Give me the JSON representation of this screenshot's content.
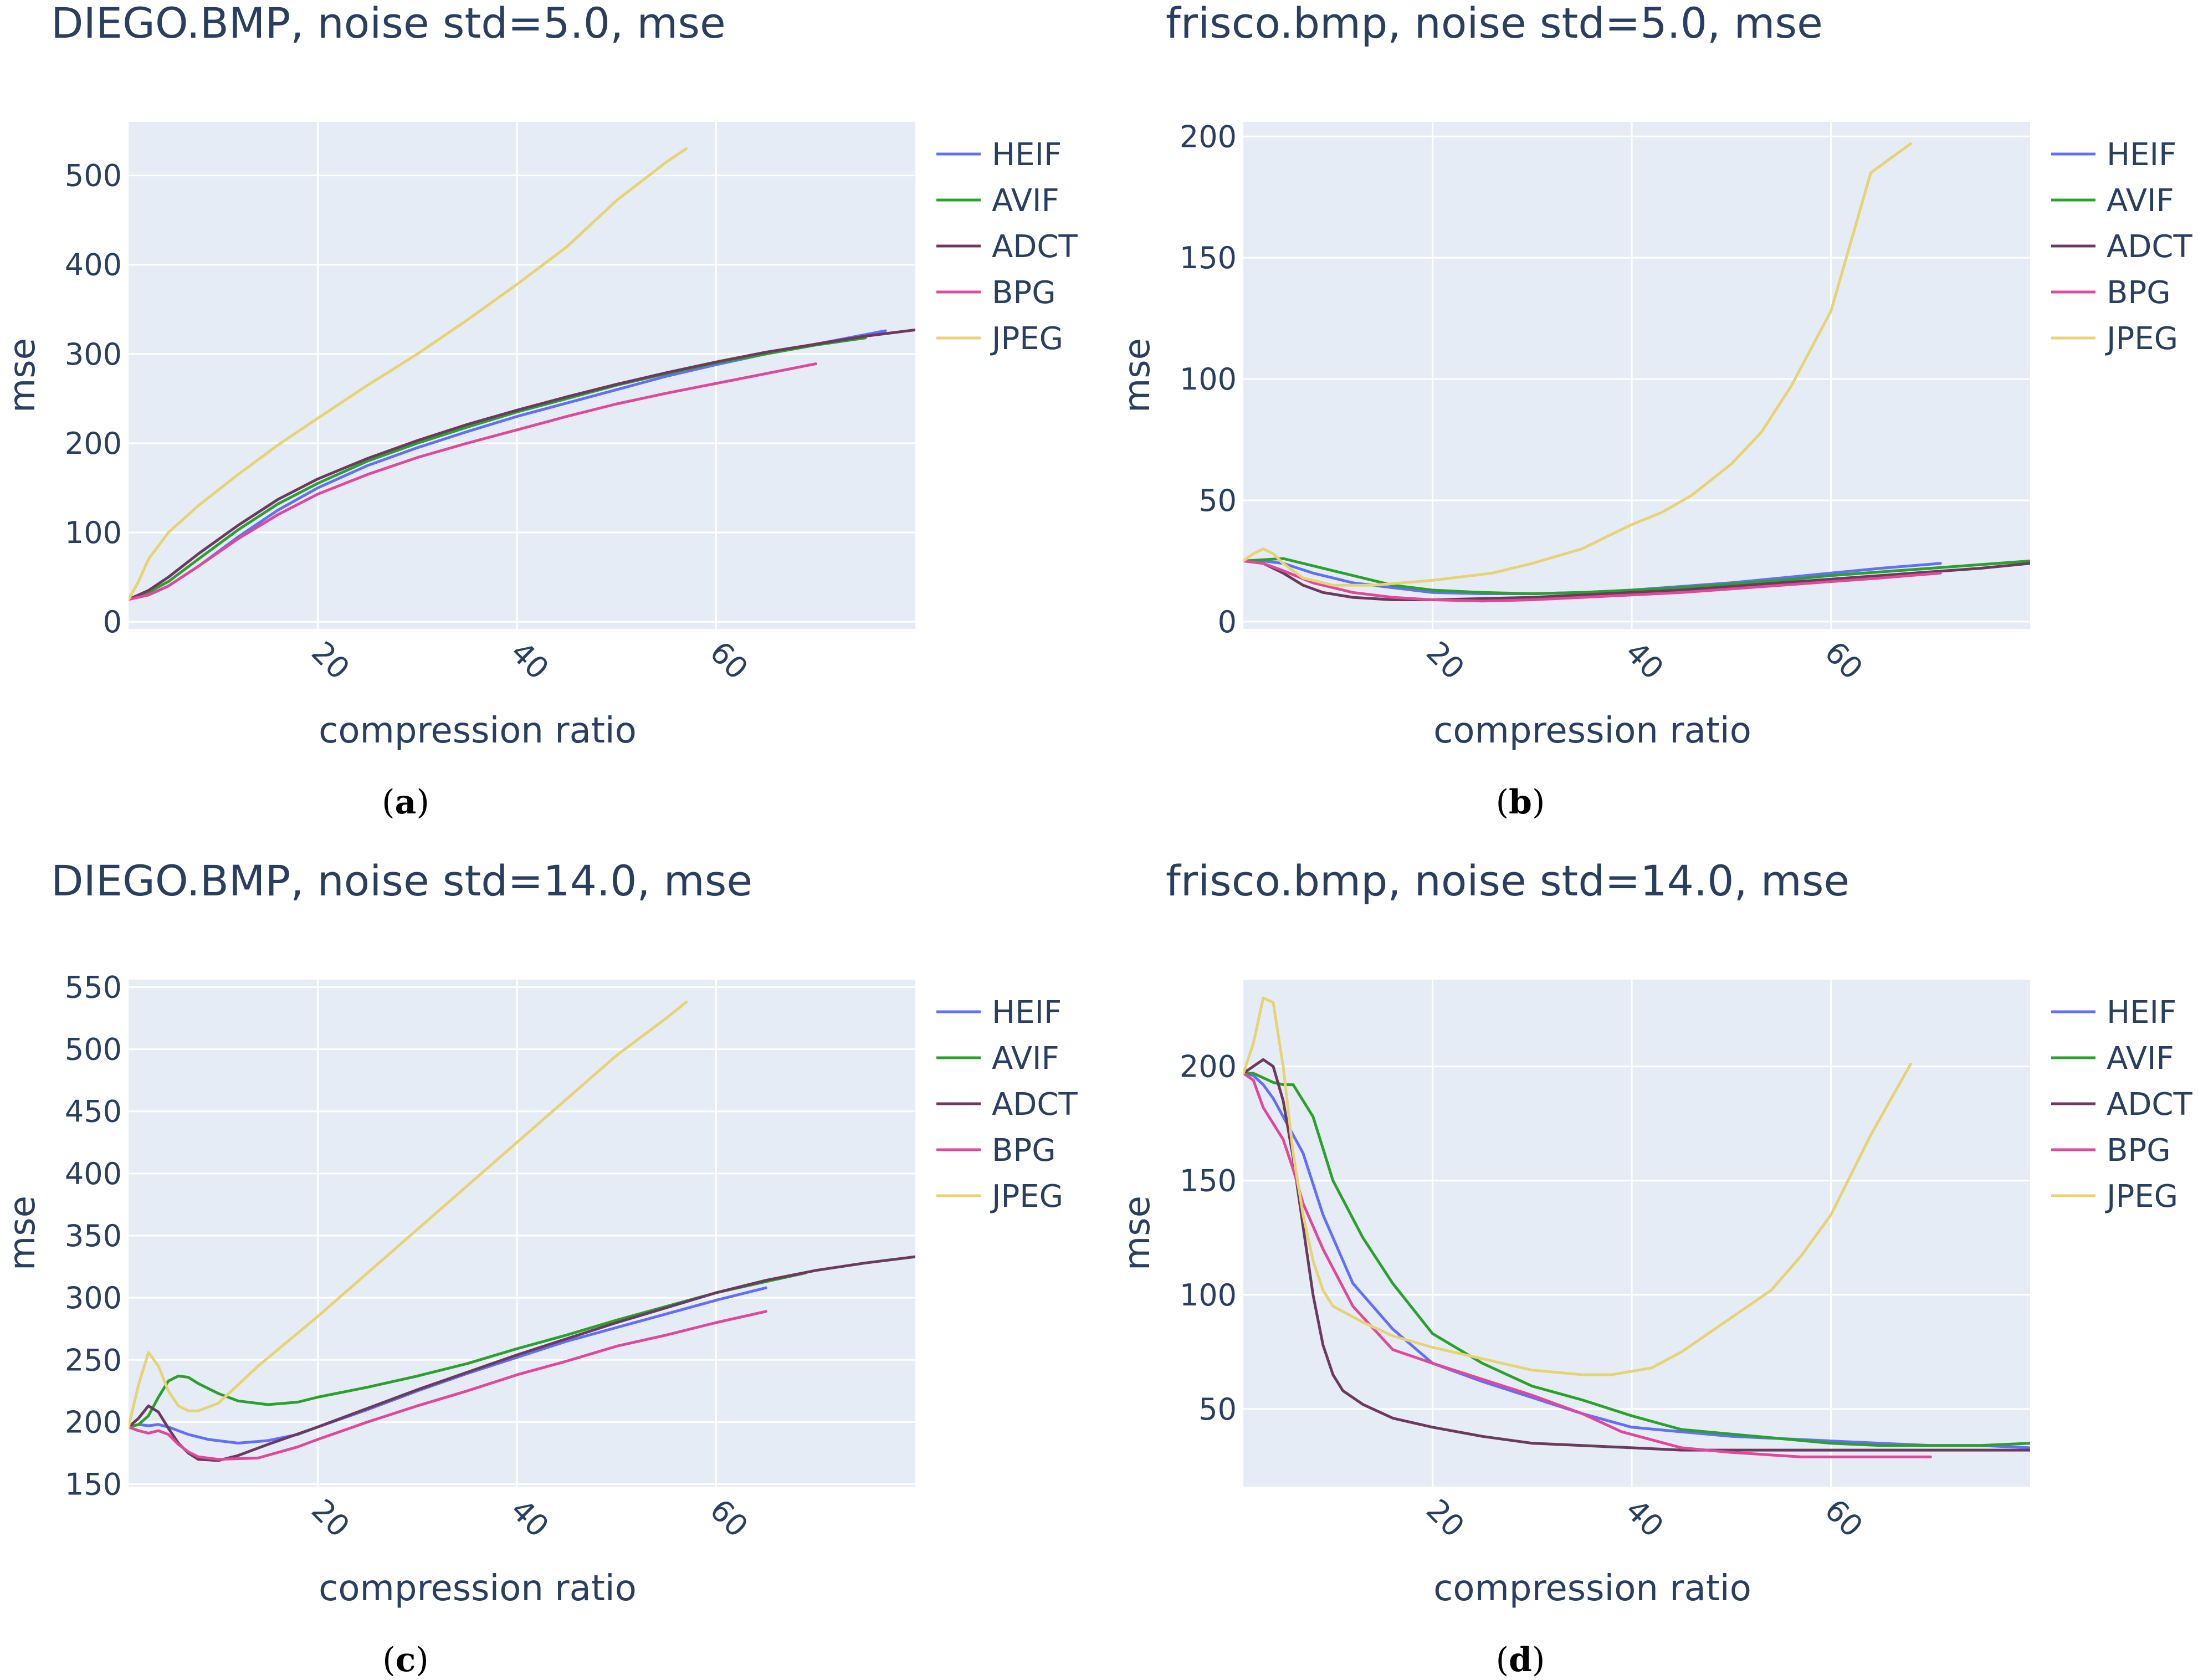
{
  "chart_data": [
    {
      "type": "line",
      "title": "DIEGO.BMP, noise std=5.0, mse",
      "xlabel": "compression ratio",
      "ylabel": "mse",
      "caption": "a",
      "xlim": [
        1,
        80
      ],
      "ylim": [
        -8,
        560
      ],
      "xticks": [
        20,
        40,
        60
      ],
      "yticks": [
        0,
        100,
        200,
        300,
        400,
        500
      ],
      "grid": true,
      "legend": "top-right outside",
      "series": [
        {
          "name": "HEIF",
          "color": "#636efa",
          "x": [
            1,
            3,
            5,
            8,
            12,
            16,
            20,
            25,
            30,
            35,
            40,
            45,
            50,
            55,
            60,
            65,
            70,
            77
          ],
          "y": [
            25,
            30,
            40,
            62,
            95,
            125,
            150,
            175,
            195,
            213,
            230,
            245,
            260,
            275,
            288,
            300,
            311,
            326
          ]
        },
        {
          "name": "AVIF",
          "color": "#2ca02c",
          "x": [
            1,
            3,
            5,
            8,
            12,
            16,
            20,
            25,
            30,
            35,
            40,
            45,
            50,
            55,
            60,
            65,
            70,
            75
          ],
          "y": [
            25,
            33,
            45,
            70,
            103,
            132,
            155,
            180,
            200,
            218,
            235,
            250,
            265,
            278,
            290,
            300,
            310,
            318
          ]
        },
        {
          "name": "ADCT",
          "color": "#6b3a5e",
          "x": [
            1,
            3,
            5,
            8,
            12,
            16,
            20,
            25,
            30,
            35,
            40,
            45,
            50,
            55,
            60,
            65,
            70,
            75,
            80
          ],
          "y": [
            25,
            35,
            50,
            76,
            108,
            137,
            160,
            183,
            203,
            221,
            237,
            252,
            266,
            279,
            291,
            302,
            311,
            320,
            327
          ]
        },
        {
          "name": "BPG",
          "color": "#e0489a",
          "x": [
            1,
            3,
            5,
            8,
            12,
            16,
            20,
            25,
            30,
            35,
            40,
            45,
            50,
            55,
            60,
            65,
            70
          ],
          "y": [
            25,
            30,
            40,
            62,
            93,
            120,
            143,
            165,
            184,
            200,
            215,
            230,
            244,
            256,
            267,
            278,
            289
          ]
        },
        {
          "name": "JPEG",
          "color": "#e6d374",
          "x": [
            1,
            2,
            3,
            5,
            8,
            12,
            16,
            20,
            25,
            30,
            35,
            40,
            45,
            50,
            55,
            57
          ],
          "y": [
            25,
            45,
            70,
            100,
            130,
            165,
            198,
            228,
            265,
            300,
            338,
            378,
            420,
            472,
            515,
            530
          ]
        }
      ]
    },
    {
      "type": "line",
      "title": "frisco.bmp, noise std=5.0, mse",
      "xlabel": "compression ratio",
      "ylabel": "mse",
      "caption": "b",
      "xlim": [
        1,
        80
      ],
      "ylim": [
        -3,
        206
      ],
      "xticks": [
        20,
        40,
        60
      ],
      "yticks": [
        0,
        50,
        100,
        150,
        200
      ],
      "grid": true,
      "legend": "top-right outside",
      "series": [
        {
          "name": "HEIF",
          "color": "#636efa",
          "x": [
            1,
            3,
            5,
            8,
            12,
            16,
            20,
            25,
            30,
            35,
            40,
            45,
            50,
            55,
            60,
            65,
            71
          ],
          "y": [
            25,
            25,
            24,
            20,
            16,
            14,
            12,
            11.5,
            11.5,
            12,
            13,
            14.5,
            16,
            18,
            20,
            22,
            24
          ]
        },
        {
          "name": "AVIF",
          "color": "#2ca02c",
          "x": [
            1,
            3,
            5,
            8,
            12,
            16,
            20,
            25,
            30,
            35,
            40,
            45,
            50,
            55,
            60,
            65,
            70,
            75,
            80
          ],
          "y": [
            25,
            25.5,
            26,
            23,
            19,
            15,
            13,
            12,
            11.5,
            12,
            13,
            14,
            15.5,
            17,
            19,
            20.5,
            22,
            23.5,
            25
          ]
        },
        {
          "name": "ADCT",
          "color": "#6b3a5e",
          "x": [
            1,
            3,
            5,
            7,
            9,
            12,
            16,
            20,
            25,
            30,
            35,
            40,
            45,
            50,
            55,
            60,
            65,
            70,
            75,
            80
          ],
          "y": [
            25,
            24,
            20,
            15,
            12,
            10,
            9,
            9,
            9.5,
            10,
            11,
            12,
            13,
            14.5,
            16,
            17.5,
            19,
            20.5,
            22,
            24
          ]
        },
        {
          "name": "BPG",
          "color": "#e0489a",
          "x": [
            1,
            3,
            5,
            8,
            12,
            16,
            20,
            25,
            30,
            35,
            40,
            45,
            50,
            55,
            60,
            65,
            71
          ],
          "y": [
            25,
            24,
            21,
            16,
            12,
            10,
            9,
            8.5,
            9,
            10,
            11,
            12,
            13.5,
            15,
            16.5,
            18,
            20
          ]
        },
        {
          "name": "JPEG",
          "color": "#e6d374",
          "x": [
            1,
            2,
            3,
            4,
            5,
            7,
            10,
            14,
            20,
            26,
            30,
            35,
            40,
            43,
            46,
            50,
            53,
            56,
            60,
            64,
            68
          ],
          "y": [
            25,
            28,
            30,
            28,
            24,
            18,
            15,
            15,
            17,
            20,
            24,
            30,
            40,
            45,
            52,
            65,
            78,
            97,
            128,
            185,
            197
          ]
        }
      ]
    },
    {
      "type": "line",
      "title": "DIEGO.BMP, noise std=14.0, mse",
      "xlabel": "compression ratio",
      "ylabel": "mse",
      "caption": "c",
      "xlim": [
        1,
        80
      ],
      "ylim": [
        148,
        556
      ],
      "xticks": [
        20,
        40,
        60
      ],
      "yticks": [
        150,
        200,
        250,
        300,
        350,
        400,
        450,
        500,
        550
      ],
      "grid": true,
      "legend": "top-right outside",
      "series": [
        {
          "name": "HEIF",
          "color": "#636efa",
          "x": [
            1,
            2,
            3,
            4,
            5,
            7,
            9,
            12,
            15,
            18,
            20,
            25,
            30,
            35,
            40,
            45,
            50,
            55,
            60,
            65
          ],
          "y": [
            196,
            198,
            197,
            198,
            196,
            190,
            186,
            183,
            185,
            190,
            196,
            210,
            225,
            239,
            252,
            265,
            276,
            287,
            298,
            308
          ]
        },
        {
          "name": "AVIF",
          "color": "#2ca02c",
          "x": [
            1,
            2,
            3,
            4,
            5,
            6,
            7,
            8,
            10,
            12,
            15,
            18,
            20,
            25,
            30,
            35,
            40,
            45,
            50,
            55,
            60,
            65,
            69
          ],
          "y": [
            196,
            198,
            205,
            220,
            233,
            237,
            236,
            231,
            223,
            217,
            214,
            216,
            220,
            228,
            237,
            247,
            259,
            270,
            282,
            293,
            304,
            313,
            320
          ]
        },
        {
          "name": "ADCT",
          "color": "#6b3a5e",
          "x": [
            1,
            2,
            3,
            4,
            5,
            6,
            7,
            8,
            10,
            12,
            15,
            20,
            25,
            30,
            35,
            40,
            45,
            50,
            55,
            60,
            65,
            70,
            75,
            80
          ],
          "y": [
            196,
            203,
            213,
            208,
            195,
            183,
            175,
            170,
            169,
            173,
            182,
            196,
            211,
            226,
            240,
            254,
            267,
            280,
            292,
            304,
            314,
            322,
            328,
            333
          ]
        },
        {
          "name": "BPG",
          "color": "#e0489a",
          "x": [
            1,
            2,
            3,
            4,
            5,
            6,
            7,
            8,
            10,
            14,
            18,
            20,
            25,
            30,
            35,
            40,
            45,
            50,
            55,
            60,
            65
          ],
          "y": [
            196,
            193,
            191,
            193,
            190,
            182,
            176,
            172,
            170,
            171,
            180,
            186,
            200,
            213,
            225,
            238,
            249,
            261,
            270,
            280,
            289
          ]
        },
        {
          "name": "JPEG",
          "color": "#e6d374",
          "x": [
            1,
            2,
            3,
            4,
            5,
            6,
            7,
            8,
            10,
            14,
            20,
            25,
            30,
            35,
            40,
            45,
            50,
            55,
            57
          ],
          "y": [
            196,
            230,
            256,
            245,
            225,
            213,
            209,
            209,
            215,
            245,
            285,
            320,
            355,
            390,
            425,
            460,
            495,
            525,
            538
          ]
        }
      ]
    },
    {
      "type": "line",
      "title": "frisco.bmp, noise std=14.0, mse",
      "xlabel": "compression ratio",
      "ylabel": "mse",
      "caption": "d",
      "xlim": [
        1,
        80
      ],
      "ylim": [
        16,
        238
      ],
      "xticks": [
        20,
        40,
        60
      ],
      "yticks": [
        50,
        100,
        150,
        200
      ],
      "grid": true,
      "legend": "top-right outside",
      "series": [
        {
          "name": "HEIF",
          "color": "#636efa",
          "x": [
            1,
            2,
            3,
            4,
            5,
            7,
            9,
            12,
            16,
            20,
            25,
            30,
            35,
            40,
            45,
            50,
            55,
            60,
            65,
            70,
            75,
            80
          ],
          "y": [
            197,
            196,
            192,
            186,
            178,
            162,
            135,
            105,
            85,
            70,
            62,
            55,
            48,
            42,
            40,
            38,
            37,
            36,
            35,
            34,
            34,
            33
          ]
        },
        {
          "name": "AVIF",
          "color": "#2ca02c",
          "x": [
            1,
            2,
            3,
            4,
            5,
            6,
            8,
            10,
            13,
            16,
            20,
            25,
            30,
            35,
            40,
            45,
            50,
            55,
            60,
            65,
            70,
            75,
            80
          ],
          "y": [
            197,
            197,
            195,
            193,
            192,
            192,
            178,
            150,
            125,
            105,
            83,
            70,
            60,
            54,
            47,
            41,
            39,
            37,
            35,
            34,
            34,
            34,
            35
          ]
        },
        {
          "name": "ADCT",
          "color": "#6b3a5e",
          "x": [
            1,
            2,
            3,
            4,
            5,
            6,
            7,
            8,
            9,
            10,
            11,
            13,
            16,
            20,
            25,
            30,
            35,
            40,
            45,
            50,
            55,
            60,
            65,
            70,
            75,
            80
          ],
          "y": [
            197,
            200,
            203,
            200,
            185,
            160,
            130,
            100,
            78,
            65,
            58,
            52,
            46,
            42,
            38,
            35,
            34,
            33,
            32,
            32,
            32,
            32,
            32,
            32,
            32,
            32
          ]
        },
        {
          "name": "BPG",
          "color": "#e0489a",
          "x": [
            1,
            2,
            3,
            4,
            5,
            6,
            7,
            9,
            12,
            16,
            20,
            25,
            30,
            35,
            39,
            45,
            50,
            57,
            62,
            70
          ],
          "y": [
            197,
            194,
            182,
            175,
            168,
            155,
            140,
            120,
            95,
            76,
            70,
            63,
            56,
            48,
            40,
            33,
            31,
            29,
            29,
            29
          ]
        },
        {
          "name": "JPEG",
          "color": "#e6d374",
          "x": [
            1,
            2,
            3,
            4,
            5,
            6,
            7,
            8,
            9,
            10,
            13,
            16,
            20,
            25,
            30,
            35,
            38,
            42,
            45,
            50,
            54,
            57,
            60,
            64,
            68
          ],
          "y": [
            197,
            210,
            230,
            228,
            200,
            162,
            135,
            115,
            102,
            95,
            88,
            82,
            77,
            72,
            67,
            65,
            65,
            68,
            75,
            90,
            102,
            117,
            135,
            170,
            201
          ]
        }
      ]
    }
  ]
}
